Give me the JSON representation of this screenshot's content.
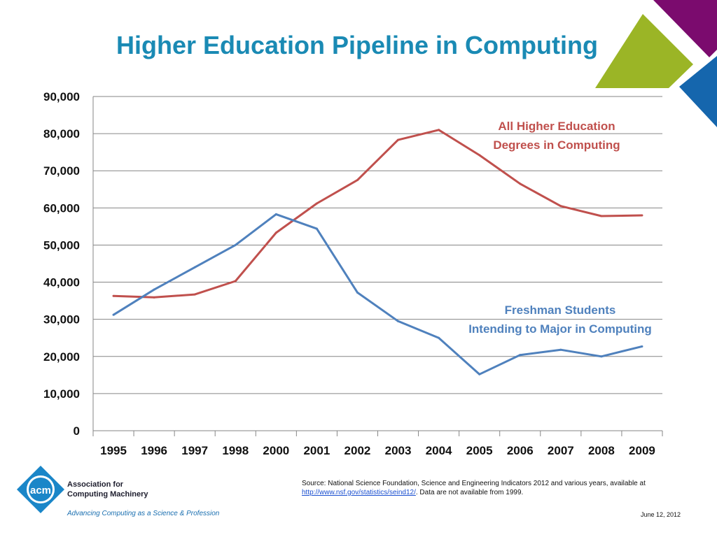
{
  "slide": {
    "title": "Higher Education Pipeline in Computing",
    "date": "June 12, 2012",
    "colors": {
      "title": "#1a8ab4",
      "deco_purple": "#7b0b6e",
      "deco_green": "#9bb526",
      "deco_blue": "#1566ad"
    }
  },
  "footer": {
    "logo_text": "acm",
    "org_line1": "Association for",
    "org_line2": "Computing Machinery",
    "tagline": "Advancing Computing as a Science & Profession",
    "source_prefix": "Source: National Science Foundation, Science and Engineering Indicators 2012 and various years,  available at",
    "source_link": "http://www.nsf.gov/statistics/seind12/",
    "source_suffix": ". Data are not available from 1999."
  },
  "chart_data": {
    "type": "line",
    "categories": [
      "1995",
      "1996",
      "1997",
      "1998",
      "2000",
      "2001",
      "2002",
      "2003",
      "2004",
      "2005",
      "2006",
      "2007",
      "2008",
      "2009"
    ],
    "y_tick_labels": [
      "0",
      "10,000",
      "20,000",
      "30,000",
      "40,000",
      "50,000",
      "60,000",
      "70,000",
      "80,000",
      "90,000"
    ],
    "ylim": [
      0,
      90000
    ],
    "grid": true,
    "series": [
      {
        "name_line1": "All Higher Education",
        "name_line2": "Degrees in Computing",
        "color": "#c0504d",
        "values": [
          36300,
          35900,
          36700,
          40300,
          53300,
          61200,
          67500,
          78300,
          81000,
          74200,
          66500,
          60500,
          57800,
          58000
        ]
      },
      {
        "name_line1": "Freshman Students",
        "name_line2": "Intending to Major  in Computing",
        "color": "#4f81bd",
        "values": [
          31200,
          38000,
          44000,
          50000,
          58300,
          54400,
          37200,
          29500,
          25000,
          15200,
          20400,
          21800,
          20000,
          22700
        ]
      }
    ]
  }
}
